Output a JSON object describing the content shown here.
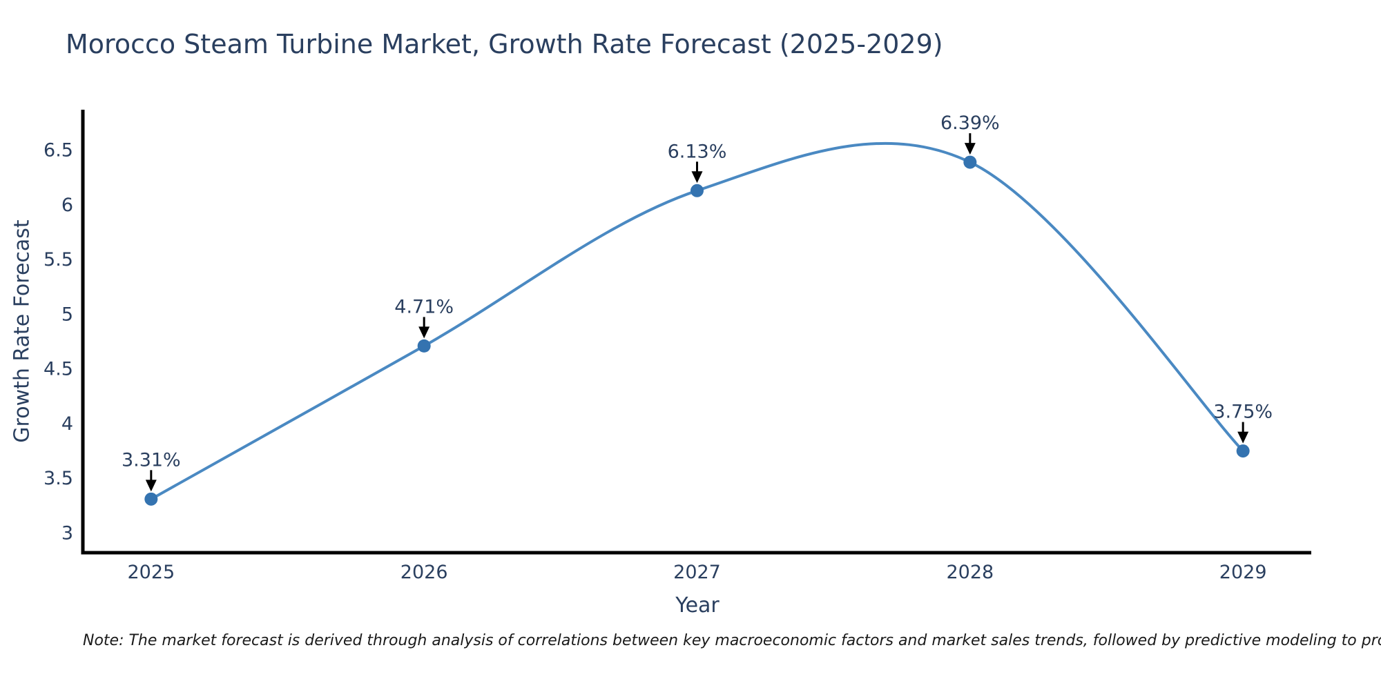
{
  "title": {
    "text": "Morocco Steam Turbine Market, Growth Rate Forecast (2025-2029)"
  },
  "note": {
    "text": "Note: The market forecast is derived through analysis of correlations between key macroeconomic factors and market sales trends, followed by predictive modeling to project future sales"
  },
  "chart_data": {
    "type": "line",
    "line_shape": "spline",
    "x": [
      2025,
      2026,
      2027,
      2028,
      2029
    ],
    "x_tick_labels": [
      "2025",
      "2026",
      "2027",
      "2028",
      "2029"
    ],
    "series": [
      {
        "name": "Growth Rate Forecast",
        "values": [
          3.31,
          4.71,
          6.13,
          6.39,
          3.75
        ]
      }
    ],
    "point_labels": [
      "3.31%",
      "4.71%",
      "6.13%",
      "6.39%",
      "3.75%"
    ],
    "title": "Morocco Steam Turbine Market, Growth Rate Forecast (2025-2029)",
    "xlabel": "Year",
    "ylabel": "Growth Rate Forecast",
    "y_ticks": [
      3,
      3.5,
      4,
      4.5,
      5,
      5.5,
      6,
      6.5
    ],
    "ylim": [
      2.82,
      6.87
    ],
    "xlim": [
      2024.75,
      2029.25
    ],
    "grid": false,
    "legend": "none",
    "colors": {
      "line": "#4A89C2",
      "marker": "#3473B0",
      "axis": "#000000",
      "text": "#2a3f5f",
      "annotation_arrow": "#000000"
    }
  }
}
